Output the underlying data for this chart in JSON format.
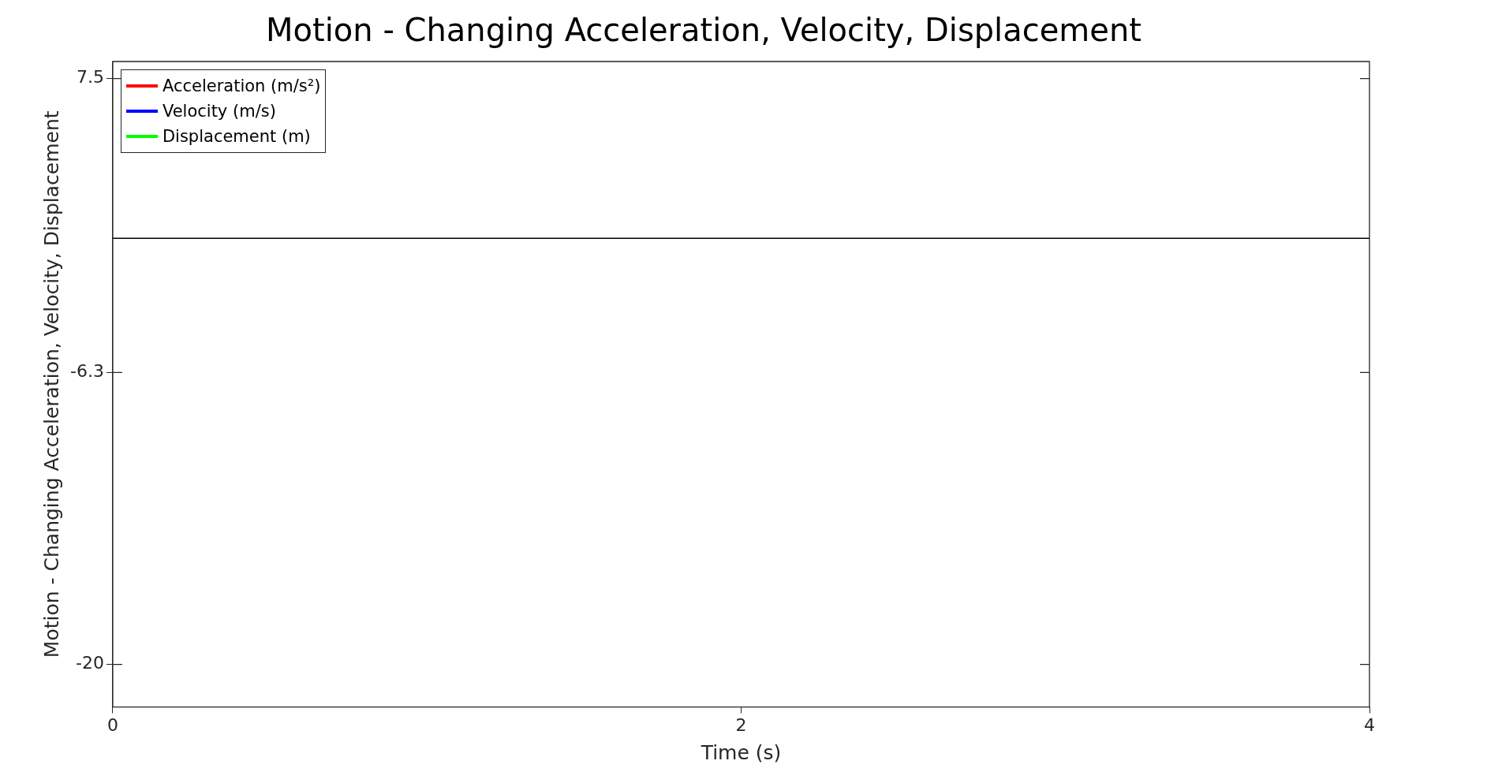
{
  "chart_data": {
    "type": "line",
    "title": "Motion - Changing Acceleration, Velocity, Displacement",
    "xlabel": "Time (s)",
    "ylabel": "Motion - Changing Acceleration, Velocity, Displacement",
    "series": [
      {
        "name": "Acceleration (m/s²)",
        "color": "#ff0000"
      },
      {
        "name": "Velocity (m/s)",
        "color": "#0000ff"
      },
      {
        "name": "Displacement (m)",
        "color": "#00ff00"
      },
      {
        "color": "#000000",
        "x": [
          0,
          4
        ],
        "values": [
          0,
          0
        ]
      }
    ],
    "xlim": [
      0,
      4
    ],
    "xticks": [
      0,
      2,
      4
    ],
    "ylim": [
      -22,
      8.3
    ],
    "yticks": [
      -20,
      -6.3,
      7.5
    ],
    "grid": false,
    "legend": "top left"
  }
}
